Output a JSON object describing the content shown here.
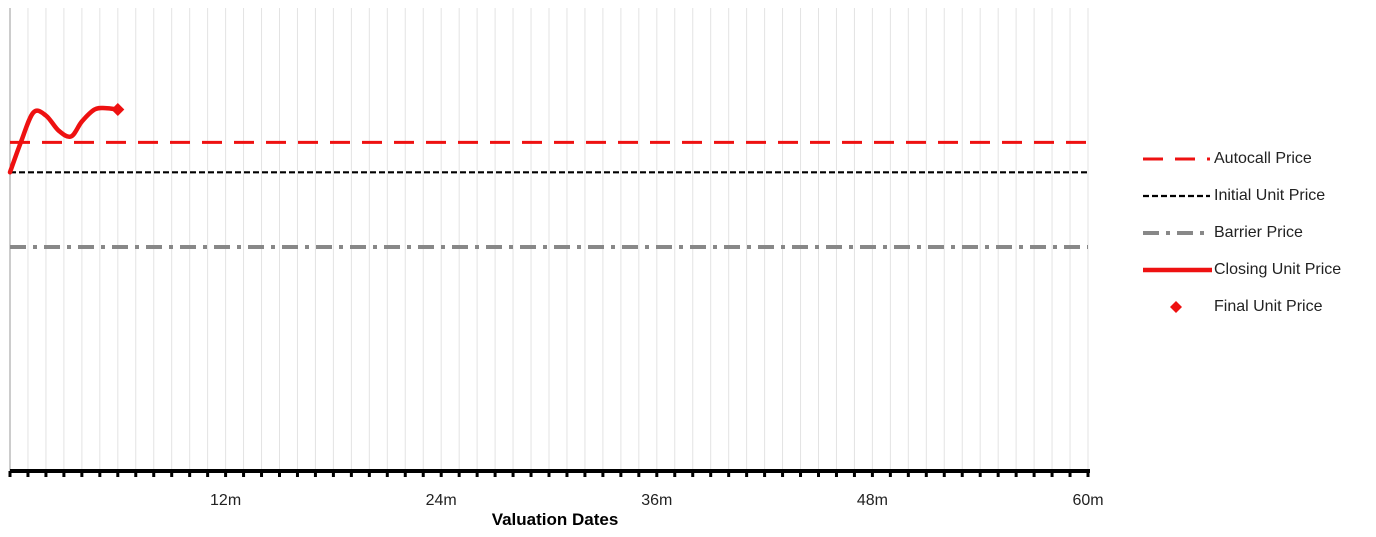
{
  "chart_data": {
    "type": "line",
    "xlabel": "Valuation Dates",
    "ylabel": "",
    "x_unit": "months",
    "xlim": [
      0,
      60
    ],
    "x_ticks": [
      {
        "value": 12,
        "label": "12m"
      },
      {
        "value": 24,
        "label": "24m"
      },
      {
        "value": 36,
        "label": "36m"
      },
      {
        "value": 48,
        "label": "48m"
      },
      {
        "value": 60,
        "label": "60m"
      }
    ],
    "ylim": [
      0,
      1.55
    ],
    "y_axis_labels_visible": false,
    "grid": {
      "x_minor_monthly": true,
      "y": false
    },
    "legend_position": "right",
    "series": [
      {
        "name": "Autocall Price",
        "kind": "hline",
        "value": 1.1,
        "color": "#ee1111",
        "style": "long-dash"
      },
      {
        "name": "Initial Unit Price",
        "kind": "hline",
        "value": 1.0,
        "color": "#000000",
        "style": "short-dash"
      },
      {
        "name": "Barrier Price",
        "kind": "hline",
        "value": 0.75,
        "color": "#888888",
        "style": "dash-dot"
      },
      {
        "name": "Closing Unit Price",
        "kind": "line",
        "color": "#ee1111",
        "style": "solid",
        "x": [
          0,
          0.6,
          1.3,
          2.0,
          2.7,
          3.4,
          4.0,
          4.7,
          5.3,
          6.0
        ],
        "y": [
          1.0,
          1.1,
          1.2,
          1.19,
          1.14,
          1.12,
          1.17,
          1.21,
          1.215,
          1.21
        ]
      },
      {
        "name": "Final Unit Price",
        "kind": "point",
        "color": "#ee1111",
        "marker": "diamond",
        "x": [
          6.0
        ],
        "y": [
          1.21
        ]
      }
    ]
  }
}
